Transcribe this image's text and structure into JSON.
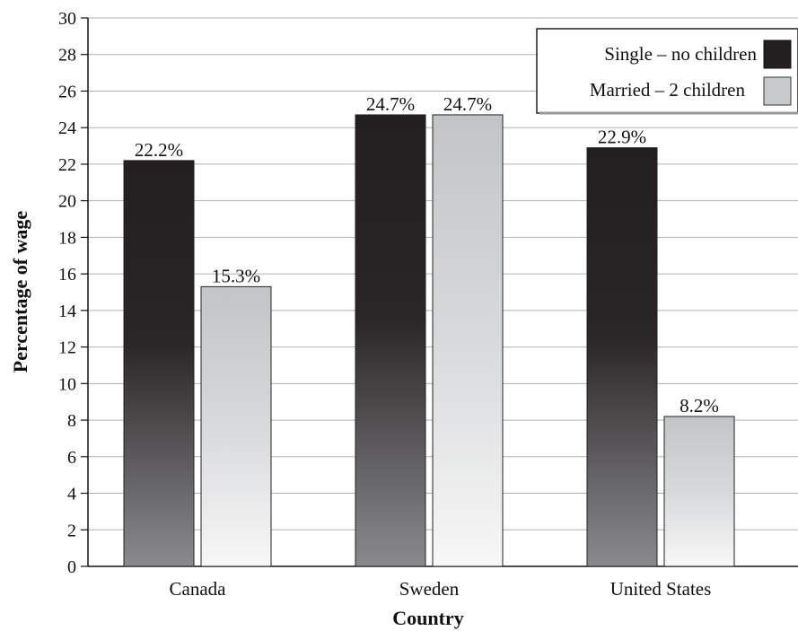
{
  "chart_data": {
    "type": "bar",
    "title": "",
    "xlabel": "Country",
    "ylabel": "Percentage of wage",
    "categories": [
      "Canada",
      "Sweden",
      "United States"
    ],
    "series": [
      {
        "name": "Single – no children",
        "values": [
          22.2,
          24.7,
          22.9
        ],
        "labels": [
          "22.2%",
          "24.7%",
          "22.9%"
        ],
        "color": "#231f20"
      },
      {
        "name": "Married – 2 children",
        "values": [
          15.3,
          24.7,
          8.2
        ],
        "labels": [
          "15.3%",
          "24.7%",
          "8.2%"
        ],
        "color": "#c8c9cb"
      }
    ],
    "ylim": [
      0,
      30
    ],
    "yticks": [
      0,
      2,
      4,
      6,
      8,
      10,
      12,
      14,
      16,
      18,
      20,
      22,
      24,
      26,
      28,
      30
    ],
    "grid": true,
    "legend_position": "top-right"
  }
}
